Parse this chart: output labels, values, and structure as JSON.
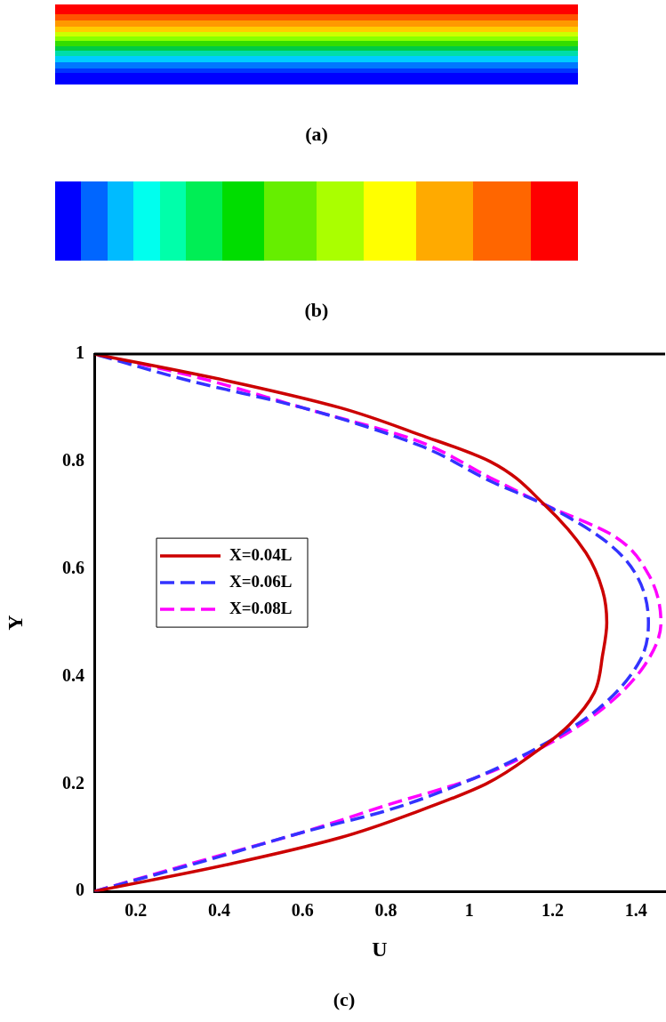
{
  "chart_data": {
    "type": "line",
    "xlabel": "U",
    "ylabel": "Y",
    "annotations": [
      "(a)",
      "(b)",
      "(c)"
    ],
    "xlim": [
      0.1,
      1.47
    ],
    "xticks": [
      0.2,
      0.4,
      0.6,
      0.8,
      1,
      1.2,
      1.4
    ],
    "ylim": [
      0,
      1
    ],
    "yticks": [
      0,
      0.2,
      0.4,
      0.6,
      0.8,
      1
    ],
    "grid": false,
    "legend": "center left",
    "marker": "none",
    "series": [
      {
        "name": "X=0.04L",
        "color": "#cc0000",
        "line_style": "solid",
        "x": [
          0.1,
          0.42,
          0.69,
          0.88,
          1.04,
          1.16,
          1.24,
          1.3,
          1.32,
          1.33,
          1.32,
          1.28,
          1.18,
          1.05,
          0.88,
          0.69,
          0.42,
          0.1
        ],
        "values": [
          0,
          0.05,
          0.1,
          0.15,
          0.2,
          0.26,
          0.31,
          0.37,
          0.44,
          0.5,
          0.56,
          0.63,
          0.72,
          0.8,
          0.85,
          0.9,
          0.95,
          1
        ]
      },
      {
        "name": "X=0.06L",
        "color": "#3333ff",
        "line_style": "dashed",
        "x": [
          0.1,
          0.38,
          0.6,
          0.8,
          1.01,
          1.17,
          1.31,
          1.41,
          1.43,
          1.4,
          1.33,
          1.18,
          1.06,
          0.88,
          0.6,
          0.33,
          0.1
        ],
        "values": [
          0,
          0.06,
          0.11,
          0.15,
          0.21,
          0.27,
          0.34,
          0.43,
          0.5,
          0.59,
          0.65,
          0.72,
          0.76,
          0.83,
          0.9,
          0.95,
          1
        ]
      },
      {
        "name": "X=0.08L",
        "color": "#ff00ff",
        "line_style": "dashed",
        "x": [
          0.1,
          0.37,
          0.6,
          0.8,
          1.01,
          1.18,
          1.32,
          1.42,
          1.46,
          1.43,
          1.35,
          1.18,
          1.05,
          0.87,
          0.6,
          0.33,
          0.1
        ],
        "values": [
          0,
          0.06,
          0.11,
          0.16,
          0.21,
          0.27,
          0.34,
          0.42,
          0.5,
          0.59,
          0.66,
          0.72,
          0.77,
          0.84,
          0.9,
          0.96,
          1
        ]
      }
    ]
  }
}
